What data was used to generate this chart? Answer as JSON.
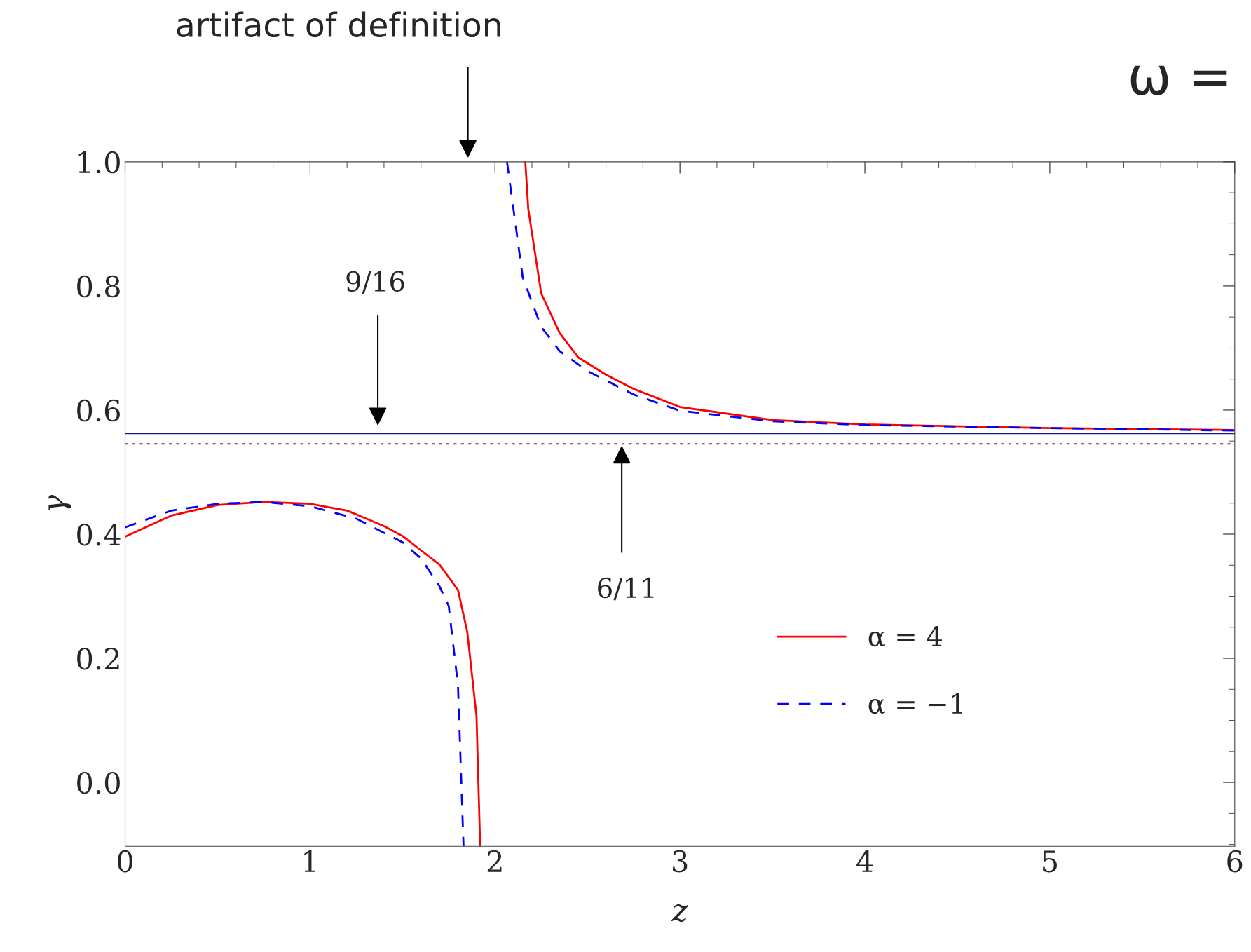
{
  "chart_data": {
    "type": "line",
    "xlabel": "z",
    "ylabel": "γ",
    "xlim": [
      0,
      6
    ],
    "ylim": [
      -0.103,
      1.0
    ],
    "xticks": [
      0,
      1,
      2,
      3,
      4,
      5,
      6
    ],
    "yticks": [
      {
        "value": 0,
        "label": "0.0"
      },
      0.2,
      0.4,
      0.6,
      0.8,
      {
        "value": 1,
        "label": "1.0"
      }
    ],
    "legend": "bottom right",
    "grid": false,
    "series": [
      {
        "name": "α = 4",
        "color": "#ff0000",
        "line_style": "solid",
        "x": [
          0,
          0.25,
          0.5,
          0.75,
          1,
          1.2,
          1.4,
          1.5,
          1.6,
          1.7,
          1.8,
          1.85,
          1.9,
          1.92,
          null,
          2.164,
          2.18,
          2.25,
          2.35,
          2.45,
          2.6,
          2.75,
          3,
          3.5,
          4,
          5,
          6
        ],
        "values": [
          0.396,
          0.43,
          0.447,
          0.452,
          0.449,
          0.438,
          0.413,
          0.397,
          0.374,
          0.351,
          0.31,
          0.243,
          0.107,
          -0.103,
          null,
          1.0,
          0.924,
          0.788,
          0.724,
          0.685,
          0.657,
          0.634,
          0.605,
          0.584,
          0.577,
          0.571,
          0.568
        ]
      },
      {
        "name": "α = −1",
        "color": "#0000ff",
        "line_style": "dashed",
        "x": [
          0,
          0.25,
          0.5,
          0.75,
          1,
          1.25,
          1.5,
          1.6,
          1.7,
          1.75,
          1.8,
          1.83,
          null,
          2.065,
          2.15,
          2.25,
          2.35,
          2.5,
          2.75,
          3,
          3.5,
          4,
          5,
          6
        ],
        "values": [
          0.411,
          0.438,
          0.449,
          0.452,
          0.445,
          0.425,
          0.387,
          0.361,
          0.316,
          0.284,
          0.156,
          -0.103,
          null,
          1.0,
          0.814,
          0.734,
          0.695,
          0.663,
          0.625,
          0.599,
          0.582,
          0.576,
          0.571,
          0.567
        ]
      }
    ],
    "ref_lines": [
      {
        "axis": "y",
        "value": 0.5625,
        "color": "#1a1a80",
        "line_style": "solid"
      },
      {
        "axis": "y",
        "value": 0.5454,
        "color": "#8b2252",
        "line_style": "dotted"
      }
    ],
    "annotations": [
      "9/16",
      "6/11",
      "artifact of definition",
      "ω ="
    ]
  }
}
